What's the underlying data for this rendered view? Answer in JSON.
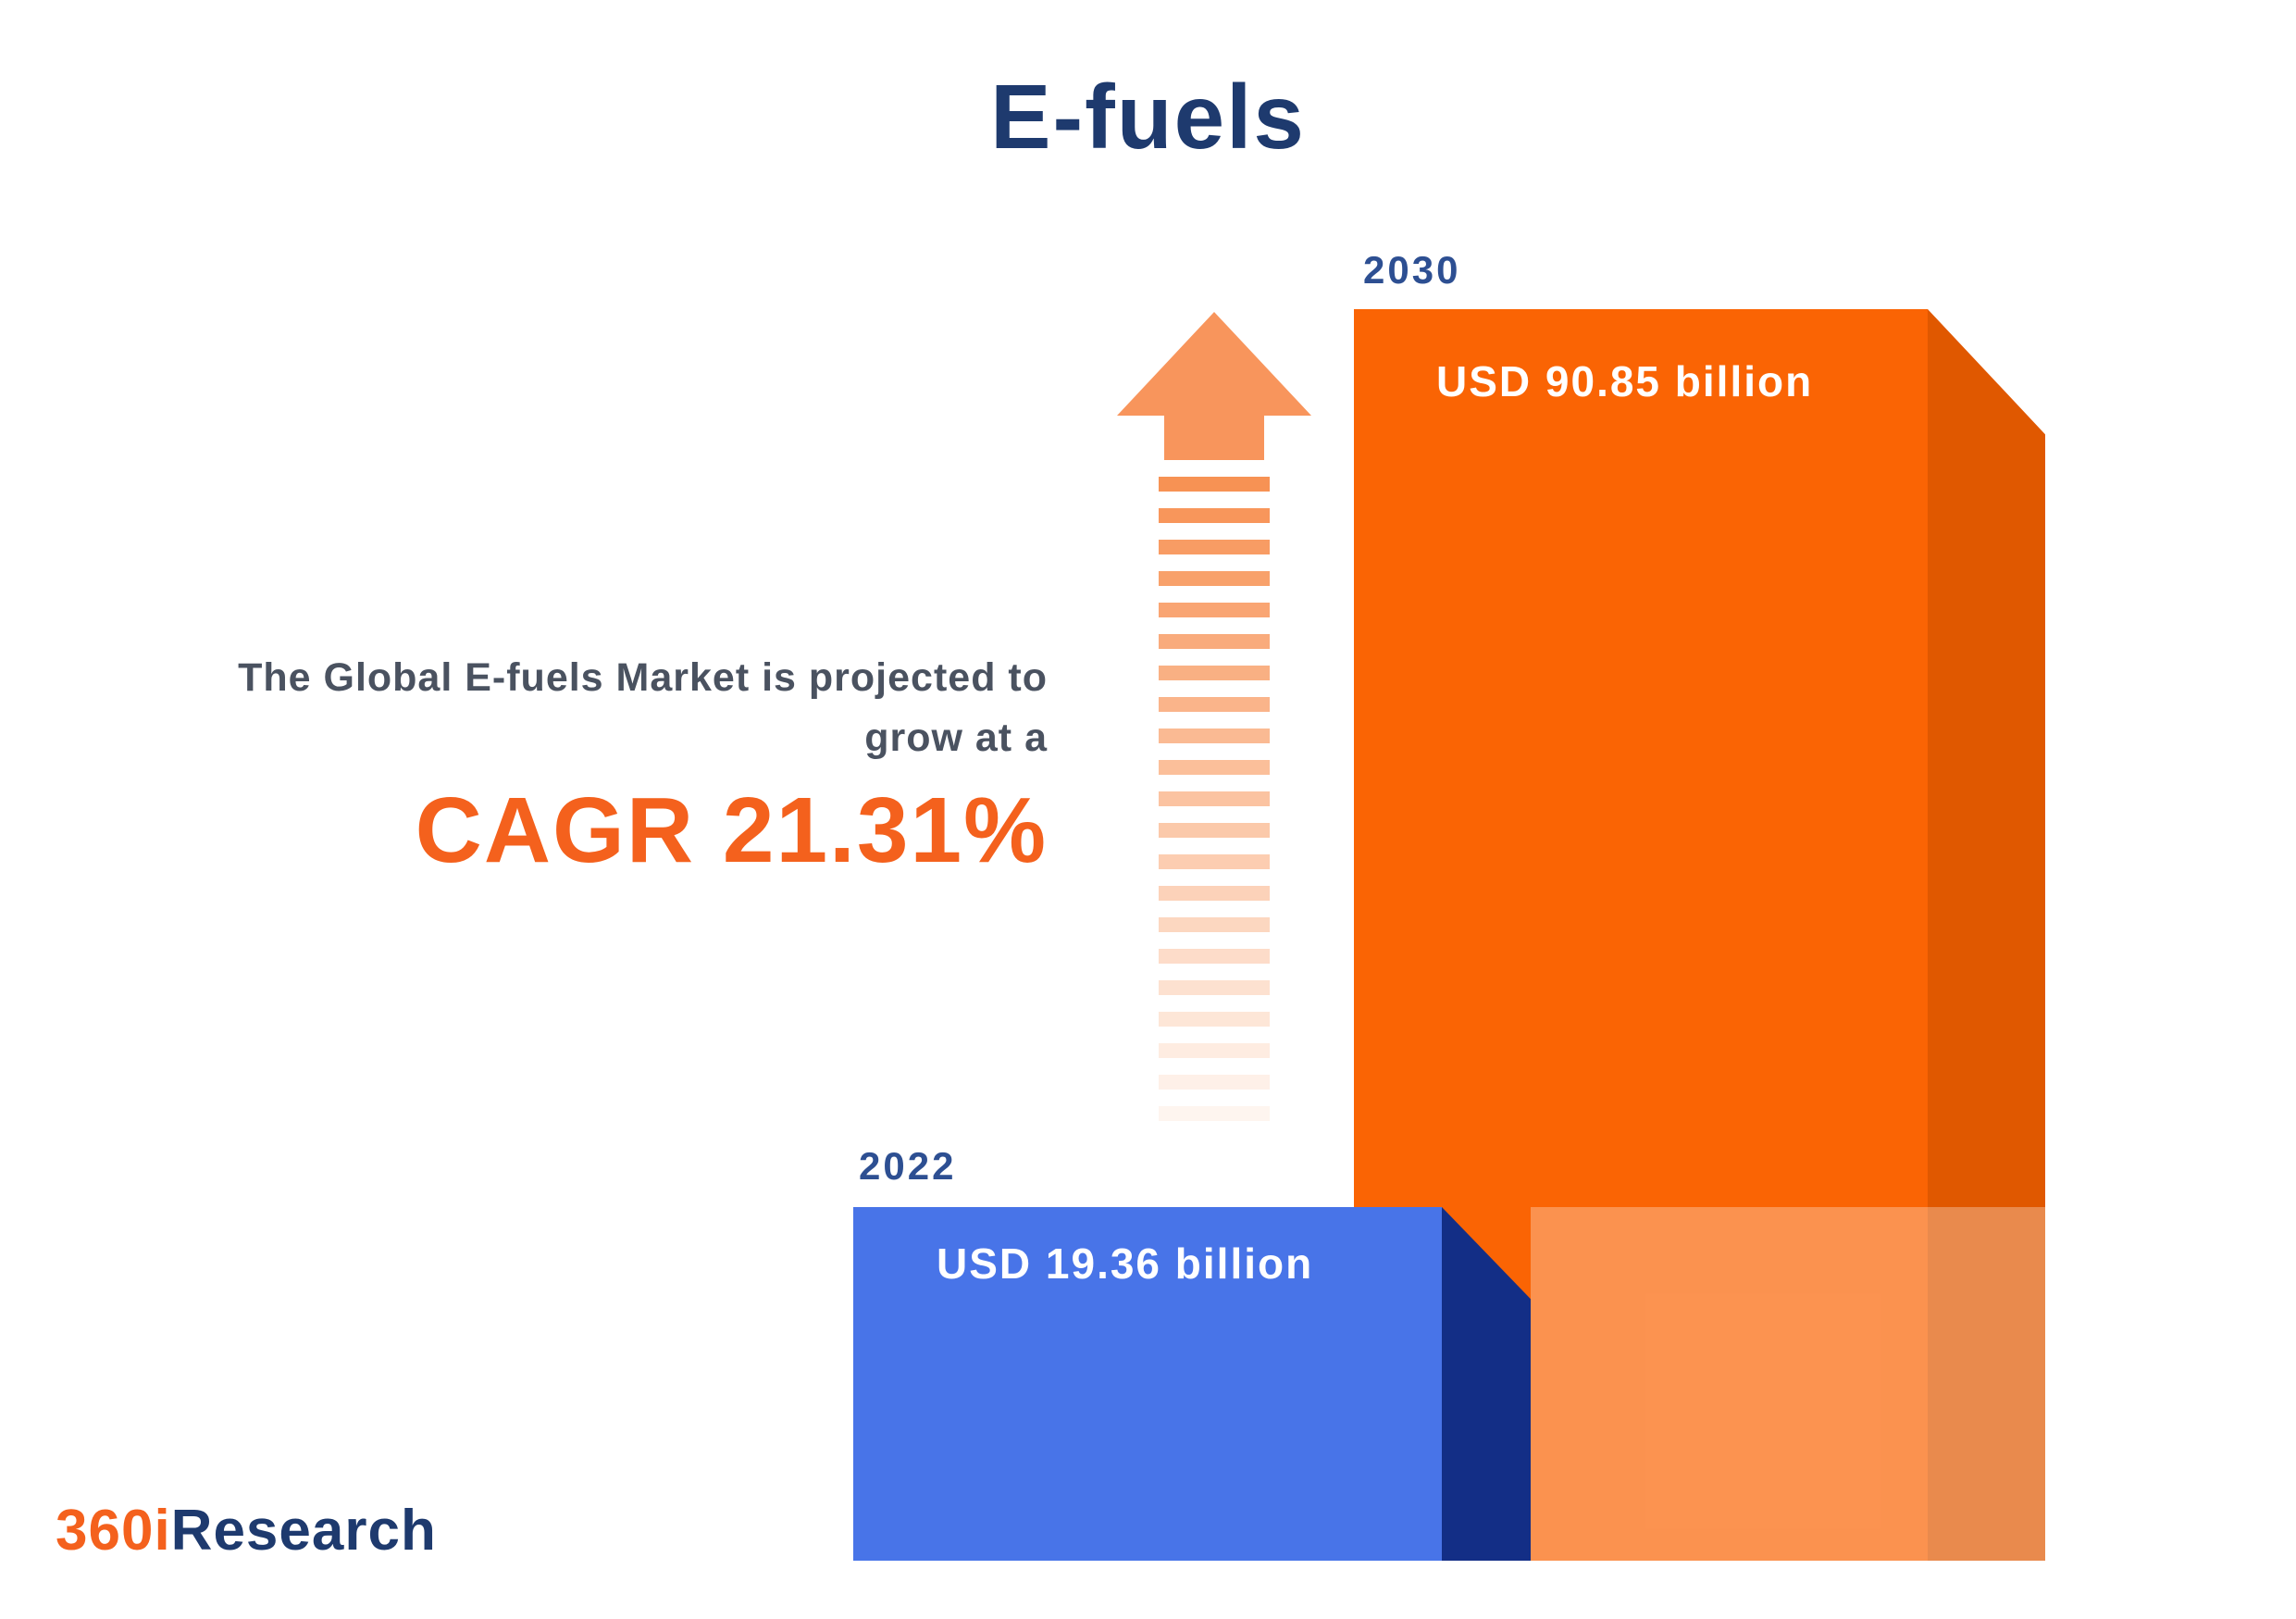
{
  "title": "E-fuels",
  "description": {
    "line1": "The Global E-fuels Market is projected to",
    "line2": "grow at a",
    "cagr": "CAGR 21.31%"
  },
  "logo": {
    "part1": "360i",
    "part2": "Research"
  },
  "chart_data": {
    "type": "bar",
    "title": "E-fuels",
    "categories": [
      "2022",
      "2030"
    ],
    "values": [
      19.36,
      90.85
    ],
    "unit": "USD billion",
    "value_labels": [
      "USD 19.36 billion",
      "USD 90.85 billion"
    ],
    "cagr_percent": 21.31,
    "annotation": "The Global E-fuels Market is projected to grow at a CAGR 21.31%",
    "legend_position": "none",
    "grid": false,
    "colors": {
      "bar_2022_front": "#4874e8",
      "bar_2022_side": "#132e86",
      "bar_2030_front": "#fa6404",
      "bar_2030_side": "#e05800",
      "accent_orange": "#f4611d",
      "navy": "#1e3a6e",
      "year_label": "#2d4f92",
      "arrow": "#f78c4b",
      "description_text": "#4a5260"
    }
  }
}
